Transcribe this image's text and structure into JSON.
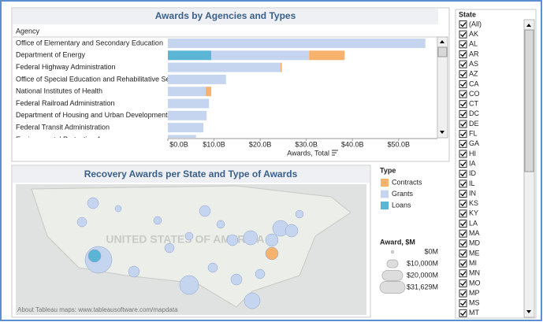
{
  "chart_data": {
    "type": "bar",
    "orientation": "horizontal",
    "title": "Awards by Agencies and Types",
    "ylabel": "Agency",
    "xlabel": "Awards, Total",
    "categories": [
      "Office of Elementary and Secondary Education",
      "Department of Energy",
      "Federal Highway Administration",
      "Office of Special Education and Rehabilitative Se..",
      "National Institutes of Health",
      "Federal Railroad Administration",
      "Department of Housing and Urban Development",
      "Federal Transit Administration",
      "Environmental Protection Agency"
    ],
    "series": [
      {
        "name": "Loans",
        "color": "#5bb5d4",
        "values": [
          0,
          9.4,
          0,
          0,
          0,
          0,
          0,
          0,
          0
        ]
      },
      {
        "name": "Grants",
        "color": "#c5d5f0",
        "values": [
          55.8,
          21.2,
          24.4,
          12.6,
          8.2,
          8.9,
          8.4,
          7.7,
          6.1
        ]
      },
      {
        "name": "Contracts",
        "color": "#f7b26d",
        "values": [
          0,
          7.7,
          0.3,
          0,
          1.2,
          0,
          0,
          0,
          0
        ]
      }
    ],
    "xlim": [
      0,
      58.4
    ],
    "xticks": [
      {
        "value": 0,
        "label": "$0.0B"
      },
      {
        "value": 10,
        "label": "$10.0B"
      },
      {
        "value": 20,
        "label": "$20.0B"
      },
      {
        "value": 30,
        "label": "$30.0B"
      },
      {
        "value": 40,
        "label": "$40.0B"
      },
      {
        "value": 50,
        "label": "$50.0B"
      }
    ],
    "grid": false
  },
  "map": {
    "title": "Recovery Awards per State and Type of Awards",
    "watermark": "UNITED STATES OF AMERICA",
    "credit": "About Tableau maps: www.tableausoftware.com/mapdata"
  },
  "type_legend": {
    "title": "Type",
    "items": [
      "Contracts",
      "Grants",
      "Loans"
    ]
  },
  "size_legend": {
    "title": "Award, $M",
    "items": [
      "$0M",
      "$10,000M",
      "$20,000M",
      "$31,629M"
    ]
  },
  "state_filter": {
    "title": "State",
    "items": [
      "(All)",
      "AK",
      "AL",
      "AR",
      "AS",
      "AZ",
      "CA",
      "CO",
      "CT",
      "DC",
      "DE",
      "FL",
      "GA",
      "HI",
      "IA",
      "ID",
      "IL",
      "IN",
      "KS",
      "KY",
      "LA",
      "MA",
      "MD",
      "ME",
      "MI",
      "MN",
      "MO",
      "MP",
      "MS",
      "MT"
    ]
  }
}
